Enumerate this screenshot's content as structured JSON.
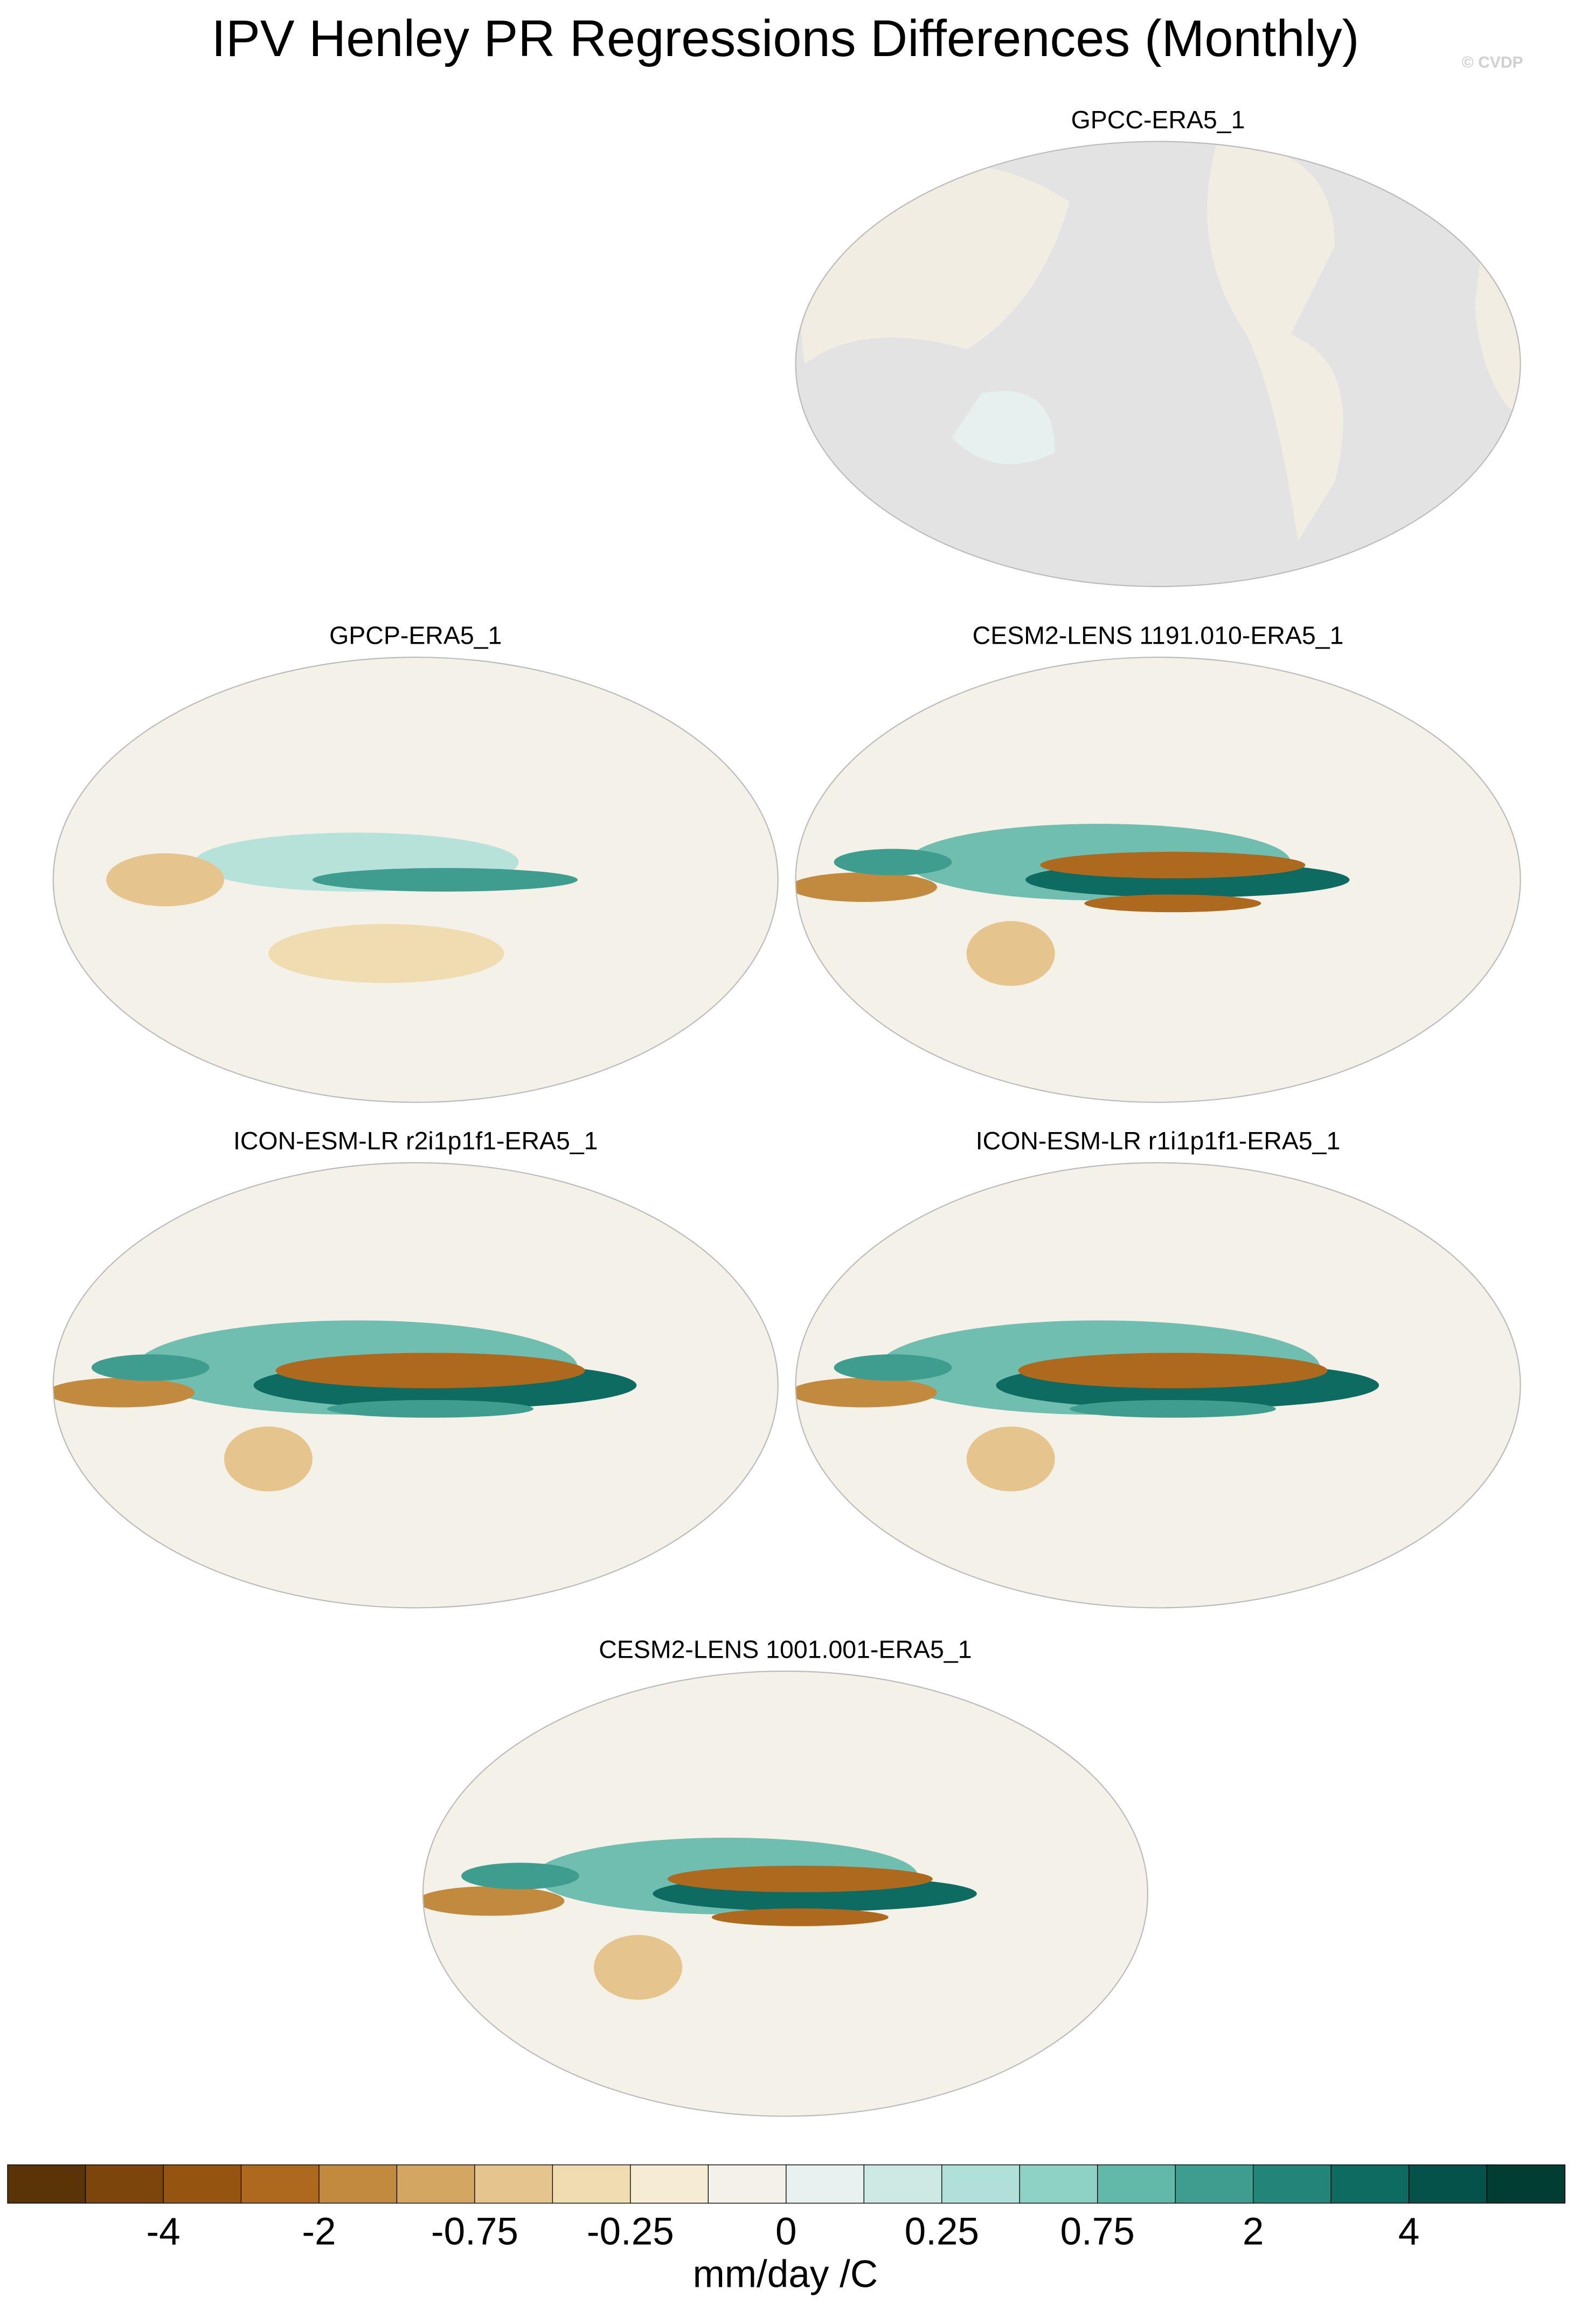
{
  "title": "IPV Henley PR Regressions Differences (Monthly)",
  "watermark": "© CVDP",
  "panels": [
    {
      "title": "GPCC-ERA5_1"
    },
    {
      "title": "GPCP-ERA5_1"
    },
    {
      "title": "CESM2-LENS 1191.010-ERA5_1"
    },
    {
      "title": "ICON-ESM-LR r2i1p1f1-ERA5_1"
    },
    {
      "title": "ICON-ESM-LR r1i1p1f1-ERA5_1"
    },
    {
      "title": "CESM2-LENS 1001.001-ERA5_1"
    }
  ],
  "colorbar": {
    "colors": [
      "#5a3406",
      "#7b450c",
      "#955410",
      "#ad6a1f",
      "#c28a3e",
      "#d3a661",
      "#e5c58d",
      "#f0dcb1",
      "#f6ebd3",
      "#f4f1e9",
      "#e7f1ef",
      "#cde9e4",
      "#b0e0d7",
      "#8dd2c4",
      "#62b8a9",
      "#3e9d8f",
      "#238479",
      "#0d6b62",
      "#045249",
      "#013d33"
    ],
    "ticks": [
      -4,
      -2,
      -0.75,
      -0.25,
      0,
      0.25,
      0.75,
      2,
      4
    ],
    "units": "mm/day /C"
  }
}
